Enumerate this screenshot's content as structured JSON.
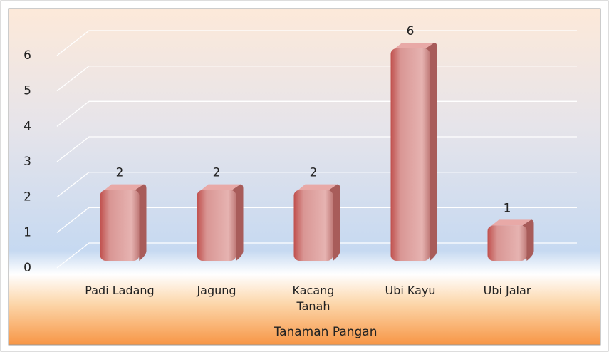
{
  "chart_data": {
    "type": "bar3d",
    "categories": [
      "Padi Ladang",
      "Jagung",
      "Kacang Tanah",
      "Ubi Kayu",
      "Ubi Jalar"
    ],
    "values": [
      2,
      2,
      2,
      6,
      1
    ],
    "color": "#d99694",
    "xlabel": "Tanaman Pangan",
    "ylim": [
      0,
      6
    ],
    "yticks": [
      0,
      1,
      2,
      3,
      4,
      5,
      6
    ],
    "grid": true
  }
}
